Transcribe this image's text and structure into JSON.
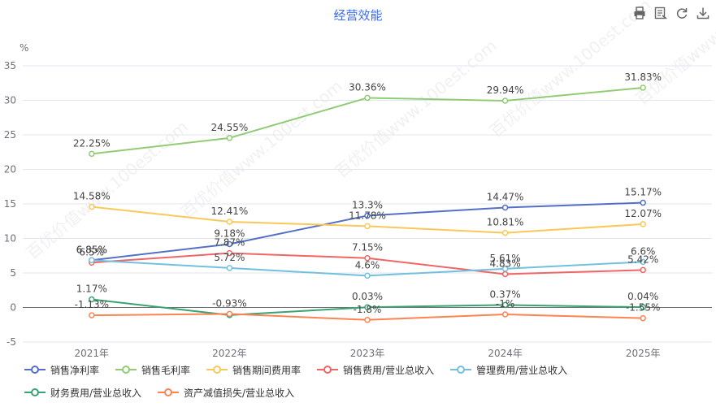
{
  "toolbar": {
    "icons": [
      "print-icon",
      "data-view-icon",
      "refresh-icon",
      "download-icon"
    ]
  },
  "chart_data": {
    "type": "line",
    "title": "经营效能",
    "ylabel": "%",
    "xlabel": "",
    "categories": [
      "2021年",
      "2022年",
      "2023年",
      "2024年",
      "2025年"
    ],
    "ylim": [
      -5,
      35
    ],
    "yticks": [
      -5,
      0,
      5,
      10,
      15,
      20,
      25,
      30,
      35
    ],
    "grid": true,
    "legend_position": "bottom",
    "watermark": "百优价值www.100est.com",
    "series": [
      {
        "name": "销售净利率",
        "color": "#5470c6",
        "values": [
          6.85,
          9.18,
          13.3,
          14.47,
          15.17
        ],
        "labels": [
          "6.85%",
          "9.18%",
          "13.3%",
          "14.47%",
          "15.17%"
        ]
      },
      {
        "name": "销售毛利率",
        "color": "#91cc75",
        "values": [
          22.25,
          24.55,
          30.36,
          29.94,
          31.83
        ],
        "labels": [
          "22.25%",
          "24.55%",
          "30.36%",
          "29.94%",
          "31.83%"
        ]
      },
      {
        "name": "销售期间费用率",
        "color": "#fac858",
        "values": [
          14.58,
          12.41,
          11.78,
          10.81,
          12.07
        ],
        "labels": [
          "14.58%",
          "12.41%",
          "11.78%",
          "10.81%",
          "12.07%"
        ]
      },
      {
        "name": "销售费用/营业总收入",
        "color": "#ee6666",
        "values": [
          6.5,
          7.87,
          7.15,
          4.83,
          5.42
        ],
        "labels": [
          "6.5%",
          "7.87%",
          "7.15%",
          "4.83%",
          "5.42%"
        ]
      },
      {
        "name": "管理费用/营业总收入",
        "color": "#73c0de",
        "values": [
          6.85,
          5.72,
          4.6,
          5.61,
          6.6
        ],
        "labels": [
          "6.85%",
          "5.72%",
          "4.6%",
          "5.61%",
          "6.6%"
        ]
      },
      {
        "name": "财务费用/营业总收入",
        "color": "#3ba272",
        "values": [
          1.17,
          -1.1,
          0.03,
          0.37,
          0.04
        ],
        "labels": [
          "1.17%",
          "",
          "0.03%",
          "0.37%",
          "0.04%"
        ]
      },
      {
        "name": "资产减值损失/营业总收入",
        "color": "#fc8452",
        "values": [
          -1.13,
          -0.93,
          -1.8,
          -1.0,
          -1.55
        ],
        "labels": [
          "-1.13%",
          "-0.93%",
          "-1.8%",
          "-1%",
          "-1.55%"
        ]
      }
    ]
  }
}
